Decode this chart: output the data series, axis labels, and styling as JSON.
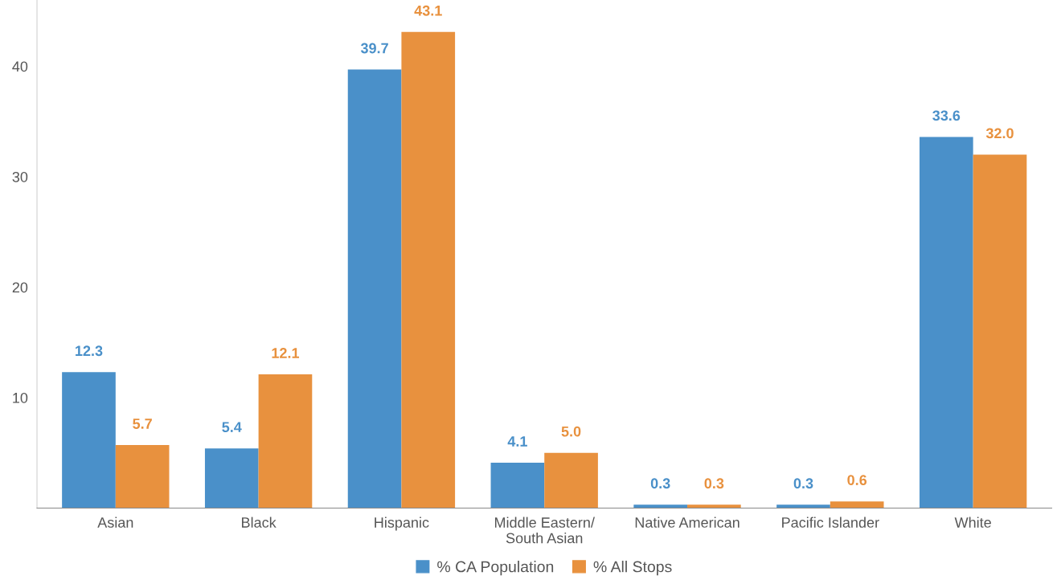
{
  "chart_data": {
    "type": "bar",
    "categories": [
      "Asian",
      "Black",
      "Hispanic",
      "Middle Eastern/\nSouth Asian",
      "Native American",
      "Pacific Islander",
      "White"
    ],
    "series": [
      {
        "name": "% CA Population",
        "color": "#4a90c9",
        "values": [
          12.3,
          5.4,
          39.7,
          4.1,
          0.3,
          0.3,
          33.6
        ]
      },
      {
        "name": "% All Stops",
        "color": "#e8913e",
        "values": [
          5.7,
          12.1,
          43.1,
          5.0,
          0.3,
          0.6,
          32.0
        ]
      }
    ],
    "value_labels": [
      [
        "12.3",
        "5.4",
        "39.7",
        "4.1",
        "0.3",
        "0.3",
        "33.6"
      ],
      [
        "5.7",
        "12.1",
        "43.1",
        "5.0",
        "0.3",
        "0.6",
        "32.0"
      ]
    ],
    "ylim": [
      0,
      46
    ],
    "yticks": [
      10,
      20,
      30,
      40
    ],
    "grid": false,
    "legend": "bottom"
  }
}
